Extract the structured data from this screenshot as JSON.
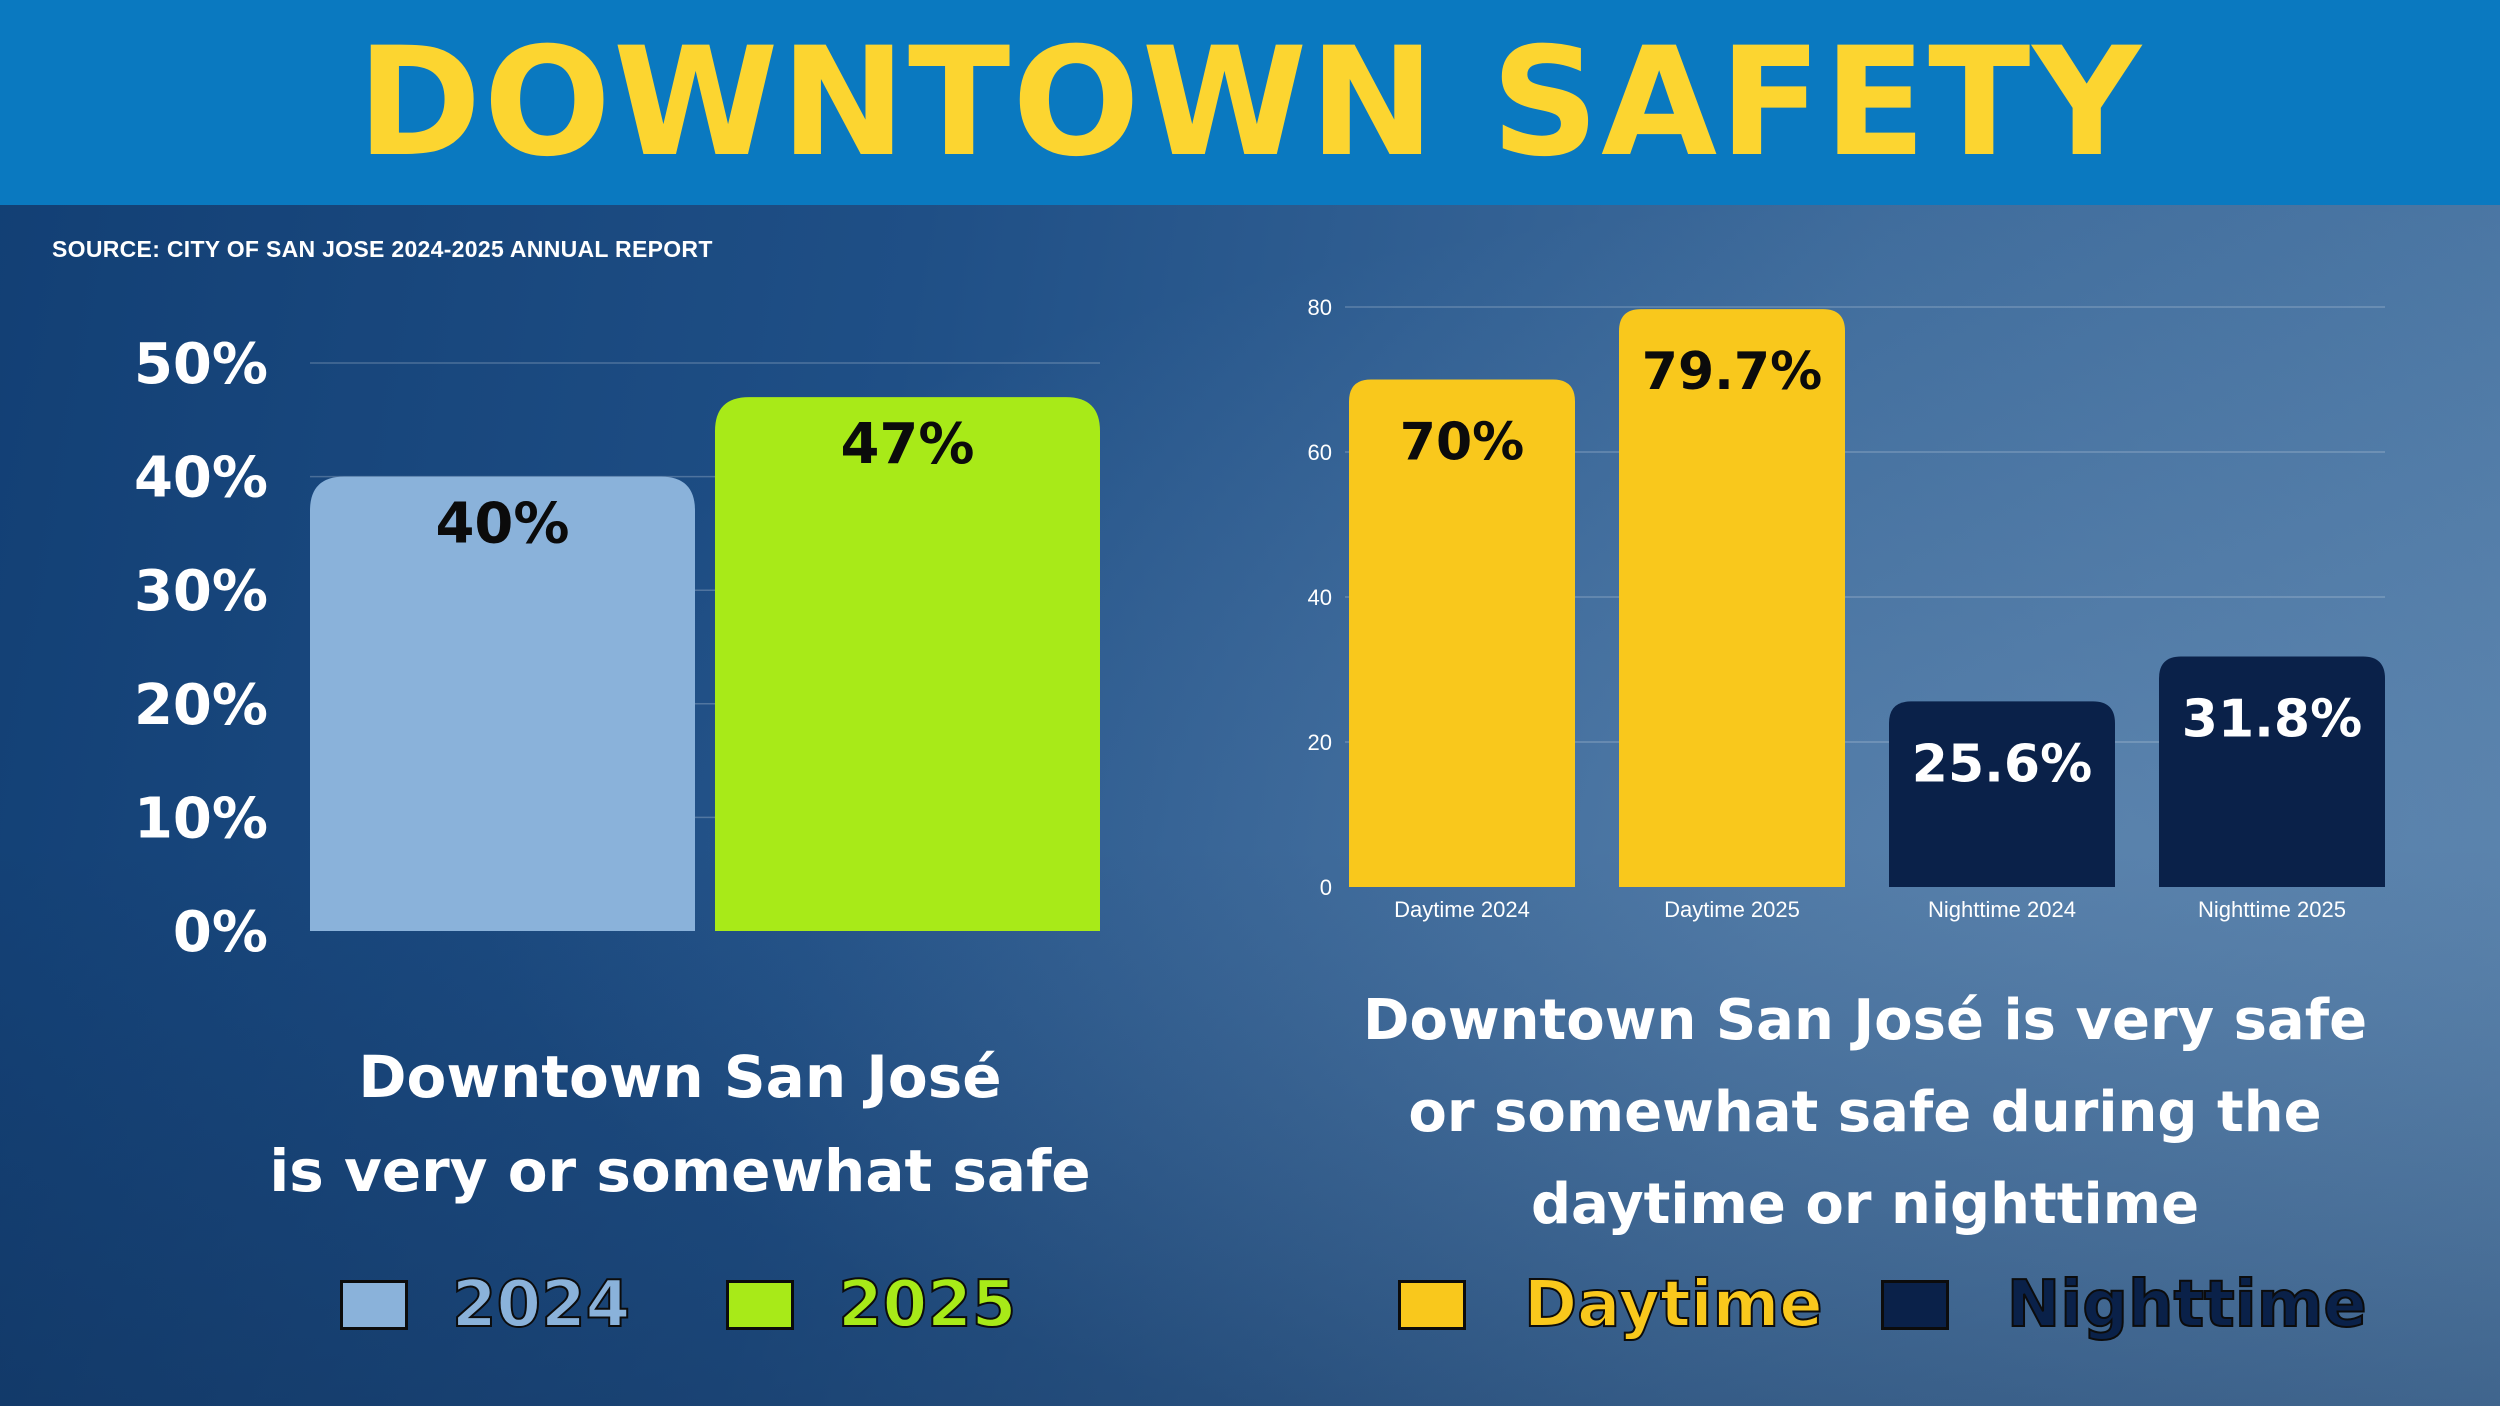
{
  "header": {
    "title": "DOWNTOWN SAFETY",
    "source": "SOURCE: CITY OF SAN JOSE 2024-2025 ANNUAL REPORT"
  },
  "colors": {
    "banner": "#0a79c0",
    "title": "#fcd530",
    "y2024": "#8ab2da",
    "y2025": "#a8ea18",
    "daytime": "#f9c81c",
    "nighttime": "#0a2149"
  },
  "chart_data": [
    {
      "type": "bar",
      "title": "Downtown San José is very or somewhat safe",
      "categories": [
        "2024",
        "2025"
      ],
      "values": [
        40,
        47
      ],
      "data_labels": [
        "40%",
        "47%"
      ],
      "yticks": [
        "0%",
        "10%",
        "20%",
        "30%",
        "40%",
        "50%"
      ],
      "ylim": [
        0,
        50
      ],
      "xlabel": "",
      "ylabel": "",
      "legend": [
        {
          "name": "2024",
          "color": "#8ab2da"
        },
        {
          "name": "2025",
          "color": "#a8ea18"
        }
      ]
    },
    {
      "type": "bar",
      "title": "Downtown San José is very safe or somewhat safe during the daytime or nighttime",
      "categories": [
        "Daytime 2024",
        "Daytime 2025",
        "Nighttime 2024",
        "Nighttime 2025"
      ],
      "values": [
        70,
        79.7,
        25.6,
        31.8
      ],
      "data_labels": [
        "70%",
        "79.7%",
        "25.6%",
        "31.8%"
      ],
      "yticks": [
        "0",
        "20",
        "40",
        "60",
        "80"
      ],
      "ylim": [
        0,
        80
      ],
      "xlabel": "",
      "ylabel": "",
      "legend": [
        {
          "name": "Daytime",
          "color": "#f9c81c"
        },
        {
          "name": "Nighttime",
          "color": "#0a2149"
        }
      ]
    }
  ],
  "captions": {
    "left": [
      "Downtown San José",
      "is very or somewhat safe"
    ],
    "right": [
      "Downtown San José is very safe",
      "or somewhat safe during the",
      "daytime or nighttime"
    ]
  }
}
